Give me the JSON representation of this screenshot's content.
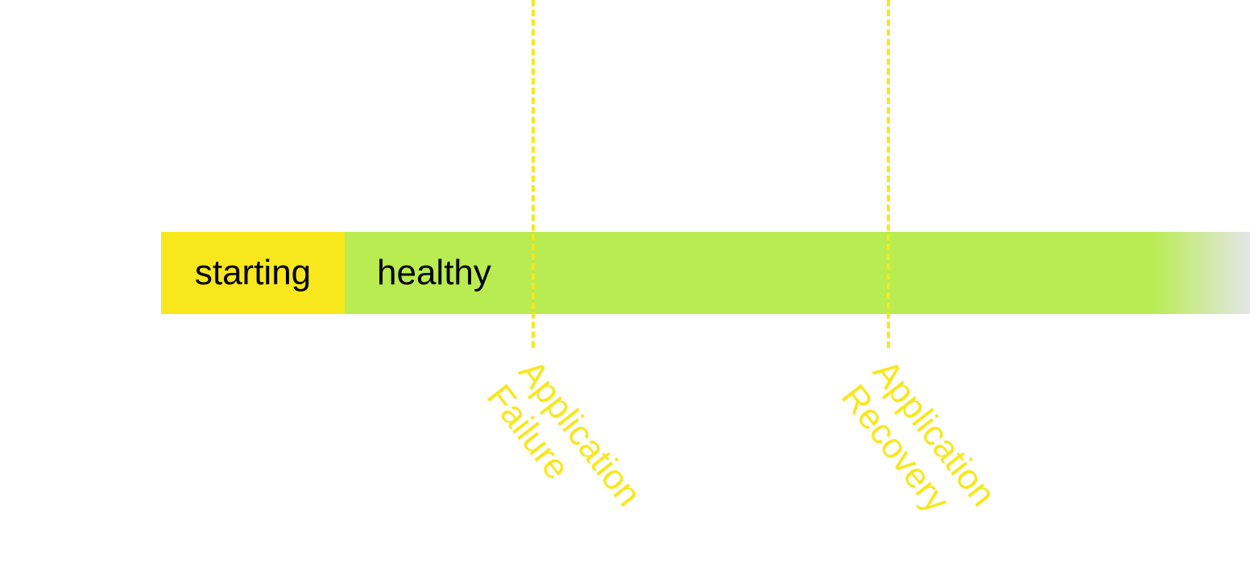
{
  "colors": {
    "starting": "#f8e71c",
    "healthy": "#b8ec50",
    "fade_end": "#e4e6e8",
    "marker": "#f8e71c",
    "text": "#000000"
  },
  "states": [
    {
      "label": "starting"
    },
    {
      "label": "healthy"
    }
  ],
  "events": [
    {
      "line1": "Application",
      "line2": "Failure"
    },
    {
      "line1": "Application",
      "line2": "Recovery"
    }
  ]
}
